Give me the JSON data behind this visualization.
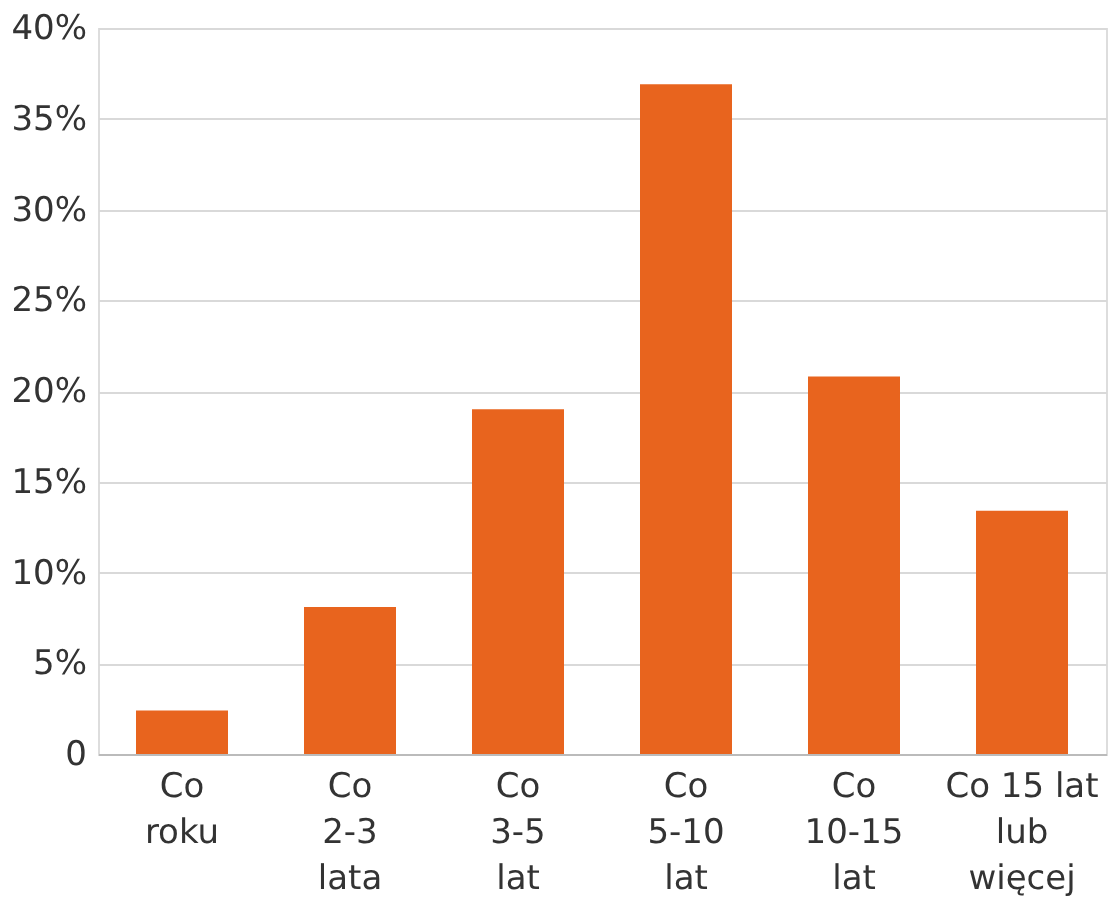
{
  "chart_data": {
    "type": "bar",
    "categories": [
      "Co\nroku",
      "Co\n2-3\nlata",
      "Co\n3-5\nlat",
      "Co\n5-10\nlat",
      "Co\n10-15\nlat",
      "Co 15 lat\nlub\nwięcej"
    ],
    "values": [
      2.4,
      8.1,
      19.0,
      36.9,
      20.8,
      13.4
    ],
    "color": "#e8641e",
    "ylim": [
      0,
      40
    ],
    "yticks": [
      0,
      {
        "value": 5,
        "label": "5%"
      },
      {
        "value": 10,
        "label": "10%"
      },
      {
        "value": 15,
        "label": "15%"
      },
      {
        "value": 20,
        "label": "20%"
      },
      {
        "value": 25,
        "label": "25%"
      },
      {
        "value": 30,
        "label": "30%"
      },
      {
        "value": 35,
        "label": "35%"
      },
      {
        "value": 40,
        "label": "40%"
      }
    ],
    "grid": "y"
  }
}
